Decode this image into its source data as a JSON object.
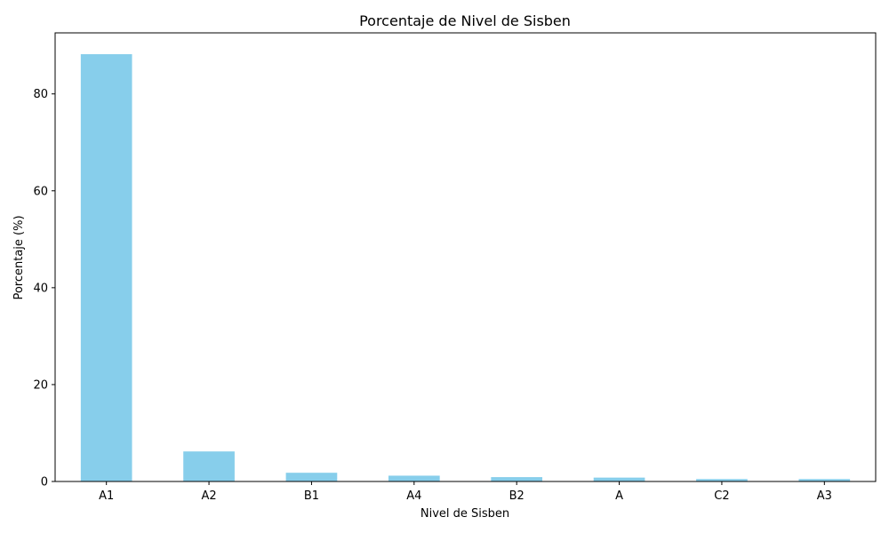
{
  "chart_data": {
    "type": "bar",
    "title": "Porcentaje de Nivel de Sisben",
    "xlabel": "Nivel de Sisben",
    "ylabel": "Porcentaje (%)",
    "categories": [
      "A1",
      "A2",
      "B1",
      "A4",
      "B2",
      "A",
      "C2",
      "A3"
    ],
    "values": [
      88.2,
      6.2,
      1.8,
      1.2,
      0.9,
      0.8,
      0.5,
      0.5
    ],
    "ylim": [
      0,
      92.6
    ],
    "yticks": [
      0,
      20,
      40,
      60,
      80
    ],
    "grid": false,
    "bar_color": "#87CEEB"
  }
}
